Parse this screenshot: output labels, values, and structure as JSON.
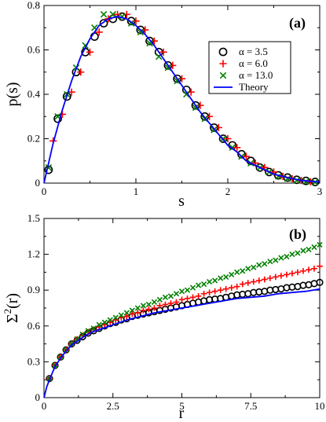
{
  "chart_data": [
    {
      "type": "scatter",
      "panel_label": "(a)",
      "xlabel": "s",
      "ylabel": "p(s)",
      "xlim": [
        0,
        3
      ],
      "ylim": [
        0,
        0.8
      ],
      "xticks": [
        "0",
        "1",
        "2",
        "3"
      ],
      "yticks": [
        "0",
        "0.2",
        "0.4",
        "0.6",
        "0.8"
      ],
      "legend_position": "top-right",
      "series": [
        {
          "name": "α = 3.5",
          "marker": "circle",
          "color": "#000000",
          "x": [
            0.05,
            0.15,
            0.25,
            0.35,
            0.45,
            0.55,
            0.65,
            0.75,
            0.85,
            0.95,
            1.05,
            1.15,
            1.25,
            1.35,
            1.45,
            1.55,
            1.65,
            1.75,
            1.85,
            1.95,
            2.05,
            2.15,
            2.25,
            2.35,
            2.45,
            2.55,
            2.65,
            2.75,
            2.85,
            2.95
          ],
          "y": [
            0.06,
            0.29,
            0.39,
            0.5,
            0.59,
            0.66,
            0.72,
            0.74,
            0.75,
            0.73,
            0.69,
            0.64,
            0.59,
            0.53,
            0.47,
            0.42,
            0.35,
            0.3,
            0.25,
            0.2,
            0.17,
            0.13,
            0.1,
            0.07,
            0.05,
            0.035,
            0.025,
            0.015,
            0.01,
            0.005
          ]
        },
        {
          "name": "α = 6.0",
          "marker": "plus",
          "color": "#ff0000",
          "x": [
            0.1,
            0.2,
            0.3,
            0.4,
            0.5,
            0.6,
            0.7,
            0.8,
            0.9,
            1.0,
            1.1,
            1.2,
            1.3,
            1.4,
            1.5,
            1.6,
            1.7,
            1.8,
            1.9,
            2.0,
            2.1,
            2.2,
            2.3,
            2.4,
            2.5,
            2.6,
            2.7,
            2.8,
            2.9
          ],
          "y": [
            0.19,
            0.31,
            0.41,
            0.5,
            0.59,
            0.68,
            0.74,
            0.76,
            0.76,
            0.73,
            0.69,
            0.64,
            0.59,
            0.53,
            0.47,
            0.41,
            0.35,
            0.3,
            0.25,
            0.2,
            0.16,
            0.12,
            0.09,
            0.07,
            0.05,
            0.03,
            0.02,
            0.012,
            0.006
          ]
        },
        {
          "name": "α = 13.0",
          "marker": "x",
          "color": "#008000",
          "x": [
            0.05,
            0.15,
            0.25,
            0.35,
            0.45,
            0.55,
            0.65,
            0.75,
            0.85,
            0.95,
            1.05,
            1.15,
            1.25,
            1.35,
            1.45,
            1.55,
            1.65,
            1.75,
            1.85,
            1.95,
            2.05,
            2.15,
            2.25,
            2.35,
            2.45,
            2.55,
            2.65,
            2.75,
            2.85,
            2.95
          ],
          "y": [
            0.07,
            0.3,
            0.4,
            0.52,
            0.62,
            0.7,
            0.76,
            0.76,
            0.75,
            0.72,
            0.68,
            0.63,
            0.57,
            0.52,
            0.46,
            0.4,
            0.34,
            0.29,
            0.24,
            0.2,
            0.16,
            0.12,
            0.09,
            0.07,
            0.05,
            0.03,
            0.02,
            0.012,
            0.007,
            0.004
          ]
        },
        {
          "name": "Theory",
          "marker": "line",
          "color": "#0000ff",
          "x": [
            0,
            0.1,
            0.2,
            0.3,
            0.4,
            0.5,
            0.6,
            0.7,
            0.8,
            0.9,
            1.0,
            1.1,
            1.2,
            1.3,
            1.4,
            1.5,
            1.6,
            1.7,
            1.8,
            1.9,
            2.0,
            2.1,
            2.2,
            2.3,
            2.4,
            2.5,
            2.6,
            2.7,
            2.8,
            2.9,
            3.0
          ],
          "y": [
            0,
            0.18,
            0.33,
            0.46,
            0.57,
            0.65,
            0.71,
            0.74,
            0.75,
            0.74,
            0.71,
            0.67,
            0.62,
            0.56,
            0.5,
            0.44,
            0.38,
            0.32,
            0.27,
            0.22,
            0.17,
            0.14,
            0.1,
            0.08,
            0.06,
            0.04,
            0.03,
            0.02,
            0.012,
            0.008,
            0.005
          ]
        }
      ]
    },
    {
      "type": "scatter",
      "panel_label": "(b)",
      "xlabel": "r",
      "ylabel": "Σ²(r)",
      "ylabel_main": "Σ",
      "ylabel_sup": "2",
      "ylabel_tail": "(r)",
      "xlim": [
        0,
        10
      ],
      "ylim": [
        0,
        1.5
      ],
      "xticks": [
        "0",
        "2.5",
        "5",
        "7.5",
        "10"
      ],
      "yticks": [
        "0",
        "0.3",
        "0.6",
        "0.9",
        "1.2",
        "1.5"
      ],
      "series": [
        {
          "name": "α = 3.5",
          "marker": "circle",
          "color": "#000000",
          "x": [
            0.2,
            0.4,
            0.6,
            0.8,
            1.0,
            1.2,
            1.4,
            1.6,
            1.8,
            2.0,
            2.2,
            2.4,
            2.6,
            2.8,
            3.0,
            3.2,
            3.4,
            3.6,
            3.8,
            4.0,
            4.2,
            4.4,
            4.6,
            4.8,
            5.0,
            5.2,
            5.4,
            5.6,
            5.8,
            6.0,
            6.2,
            6.4,
            6.6,
            6.8,
            7.0,
            7.2,
            7.4,
            7.6,
            7.8,
            8.0,
            8.2,
            8.4,
            8.6,
            8.8,
            9.0,
            9.2,
            9.4,
            9.6,
            9.8,
            10.0
          ],
          "y": [
            0.16,
            0.27,
            0.34,
            0.4,
            0.45,
            0.48,
            0.51,
            0.54,
            0.56,
            0.58,
            0.6,
            0.62,
            0.63,
            0.65,
            0.66,
            0.68,
            0.69,
            0.7,
            0.71,
            0.72,
            0.73,
            0.74,
            0.75,
            0.76,
            0.77,
            0.78,
            0.79,
            0.8,
            0.81,
            0.82,
            0.825,
            0.83,
            0.84,
            0.85,
            0.86,
            0.865,
            0.87,
            0.88,
            0.885,
            0.89,
            0.9,
            0.905,
            0.91,
            0.92,
            0.925,
            0.93,
            0.94,
            0.945,
            0.955,
            0.965
          ]
        },
        {
          "name": "α = 6.0",
          "marker": "plus",
          "color": "#ff0000",
          "x": [
            0.2,
            0.4,
            0.6,
            0.8,
            1.0,
            1.2,
            1.4,
            1.6,
            1.8,
            2.0,
            2.2,
            2.4,
            2.6,
            2.8,
            3.0,
            3.2,
            3.4,
            3.6,
            3.8,
            4.0,
            4.2,
            4.4,
            4.6,
            4.8,
            5.0,
            5.2,
            5.4,
            5.6,
            5.8,
            6.0,
            6.2,
            6.4,
            6.6,
            6.8,
            7.0,
            7.2,
            7.4,
            7.6,
            7.8,
            8.0,
            8.2,
            8.4,
            8.6,
            8.8,
            9.0,
            9.2,
            9.4,
            9.6,
            9.8,
            10.0
          ],
          "y": [
            0.16,
            0.27,
            0.34,
            0.4,
            0.45,
            0.49,
            0.52,
            0.55,
            0.57,
            0.59,
            0.61,
            0.63,
            0.65,
            0.67,
            0.68,
            0.7,
            0.71,
            0.73,
            0.74,
            0.75,
            0.77,
            0.78,
            0.79,
            0.8,
            0.82,
            0.83,
            0.84,
            0.85,
            0.87,
            0.88,
            0.89,
            0.9,
            0.91,
            0.92,
            0.93,
            0.95,
            0.96,
            0.97,
            0.98,
            0.99,
            1.0,
            1.01,
            1.02,
            1.03,
            1.04,
            1.05,
            1.06,
            1.07,
            1.08,
            1.1
          ]
        },
        {
          "name": "α = 13.0",
          "marker": "x",
          "color": "#008000",
          "x": [
            0.2,
            0.4,
            0.6,
            0.8,
            1.0,
            1.2,
            1.4,
            1.6,
            1.8,
            2.0,
            2.2,
            2.4,
            2.6,
            2.8,
            3.0,
            3.2,
            3.4,
            3.6,
            3.8,
            4.0,
            4.2,
            4.4,
            4.6,
            4.8,
            5.0,
            5.2,
            5.4,
            5.6,
            5.8,
            6.0,
            6.2,
            6.4,
            6.6,
            6.8,
            7.0,
            7.2,
            7.4,
            7.6,
            7.8,
            8.0,
            8.2,
            8.4,
            8.6,
            8.8,
            9.0,
            9.2,
            9.4,
            9.6,
            9.8,
            10.0
          ],
          "y": [
            0.16,
            0.27,
            0.34,
            0.4,
            0.45,
            0.49,
            0.53,
            0.56,
            0.58,
            0.61,
            0.63,
            0.65,
            0.67,
            0.69,
            0.71,
            0.73,
            0.75,
            0.77,
            0.78,
            0.8,
            0.82,
            0.84,
            0.85,
            0.87,
            0.89,
            0.9,
            0.92,
            0.94,
            0.95,
            0.97,
            0.98,
            1.0,
            1.01,
            1.03,
            1.05,
            1.06,
            1.08,
            1.09,
            1.11,
            1.12,
            1.14,
            1.15,
            1.17,
            1.18,
            1.2,
            1.21,
            1.23,
            1.24,
            1.26,
            1.28
          ]
        },
        {
          "name": "Theory",
          "marker": "line",
          "color": "#0000ff",
          "x": [
            0,
            0.1,
            0.2,
            0.4,
            0.6,
            0.8,
            1.0,
            1.25,
            1.5,
            1.75,
            2.0,
            2.5,
            3.0,
            3.5,
            4.0,
            4.5,
            5.0,
            5.5,
            6.0,
            6.5,
            7.0,
            7.5,
            8.0,
            8.5,
            9.0,
            9.5,
            10.0
          ],
          "y": [
            0,
            0.09,
            0.15,
            0.26,
            0.33,
            0.39,
            0.44,
            0.48,
            0.52,
            0.55,
            0.57,
            0.61,
            0.65,
            0.68,
            0.71,
            0.73,
            0.75,
            0.77,
            0.79,
            0.81,
            0.83,
            0.84,
            0.85,
            0.87,
            0.88,
            0.89,
            0.91
          ]
        }
      ]
    }
  ]
}
